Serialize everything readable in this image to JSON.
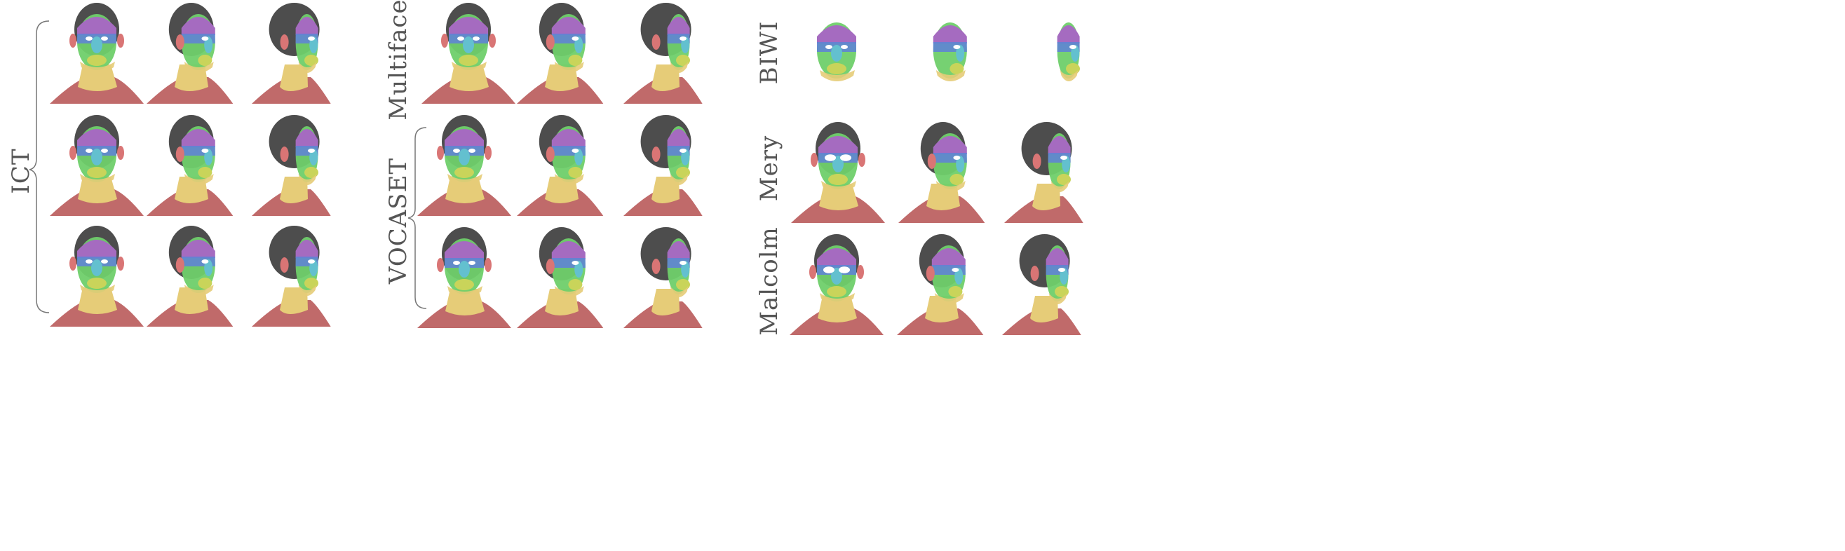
{
  "figure": {
    "groups": [
      {
        "id": "ict",
        "label": "ICT",
        "rows": 3,
        "bracketed": true
      },
      {
        "id": "multiface",
        "label": "Multiface",
        "rows": 1,
        "bracketed": false
      },
      {
        "id": "vocaset",
        "label": "VOCASET",
        "rows": 2,
        "bracketed": true
      },
      {
        "id": "biwi",
        "label": "BIWI",
        "rows": 1,
        "bracketed": false
      },
      {
        "id": "mery",
        "label": "Mery",
        "rows": 1,
        "bracketed": false
      },
      {
        "id": "malcolm",
        "label": "Malcolm",
        "rows": 1,
        "bracketed": false
      }
    ],
    "views": [
      "front",
      "three-quarter",
      "profile"
    ],
    "region_colors": {
      "scalp": "#4d4d4d",
      "forehead": "#a56bc0",
      "eyes": "#5f84d4",
      "nose": "#63c0cf",
      "cheeks": "#6fcf6a",
      "mouth": "#c9d45a",
      "jaw_neck": "#e6cc78",
      "shoulders": "#c06a6a",
      "ears": "#d97575"
    }
  }
}
